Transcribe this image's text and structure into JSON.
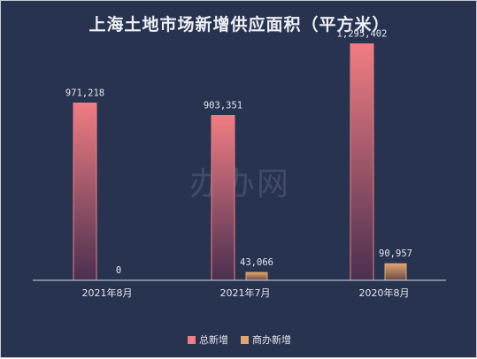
{
  "chart_data": {
    "type": "bar",
    "title": "上海土地市场新增供应面积（平方米）",
    "categories": [
      "2021年8月",
      "2021年7月",
      "2020年8月"
    ],
    "series": [
      {
        "name": "总新增",
        "values": [
          971218,
          903351,
          1295402
        ],
        "labels": [
          "971,218",
          "903,351",
          "1,295,402"
        ],
        "color": "#f07d82"
      },
      {
        "name": "商办新增",
        "values": [
          0,
          43066,
          90957
        ],
        "labels": [
          "0",
          "43,066",
          "90,957"
        ],
        "color": "#e0a46e"
      }
    ],
    "ylim": [
      0,
      1400000
    ],
    "grid": false,
    "legend": "bottom"
  },
  "background": "#283350",
  "watermark": "办办网"
}
